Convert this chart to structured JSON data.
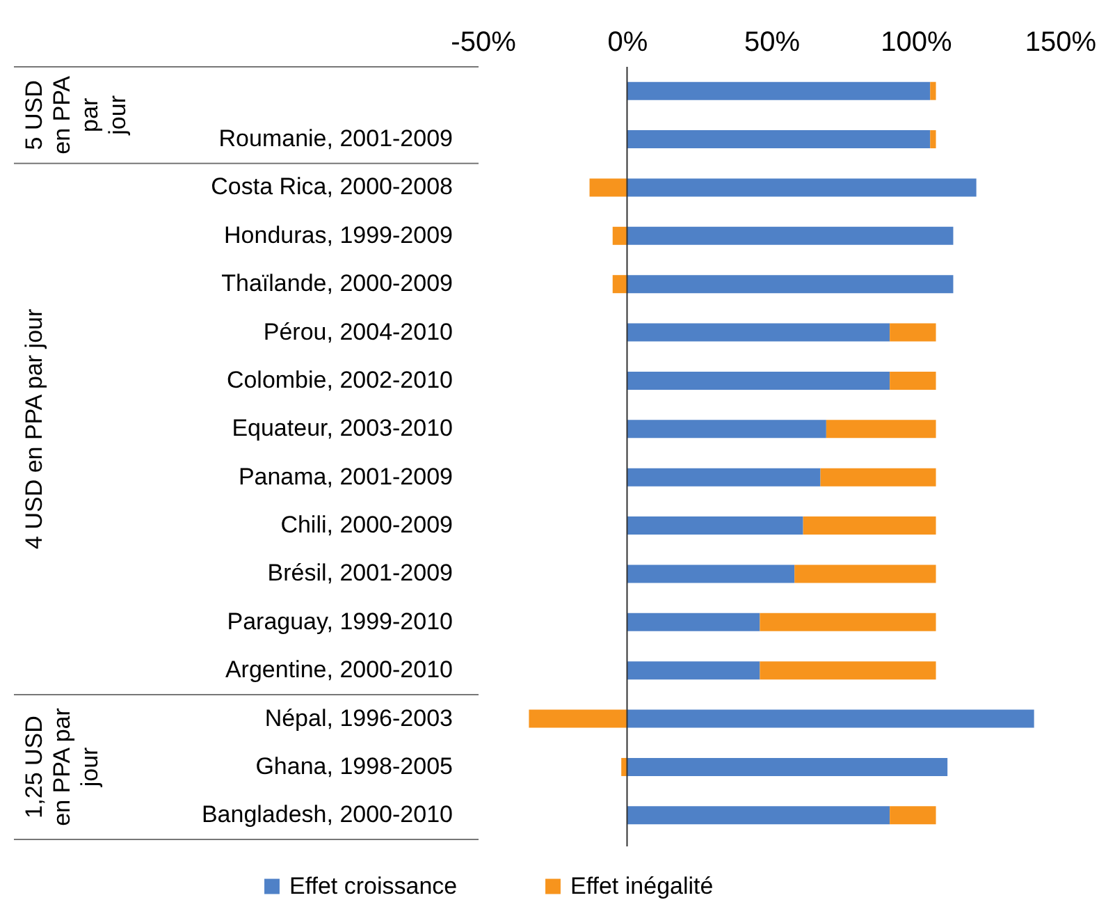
{
  "chart_data": {
    "type": "bar",
    "orientation": "horizontal",
    "stacked": true,
    "categories": [
      null,
      "Roumanie, 2001-2009",
      "Costa Rica, 2000-2008",
      "Honduras, 1999-2009",
      "Thaïlande, 2000-2009",
      "Pérou, 2004-2010",
      "Colombie, 2002-2010",
      "Equateur, 2003-2010",
      "Panama, 2001-2009",
      "Chili, 2000-2009",
      "Brésil, 2001-2009",
      "Paraguay, 1999-2010",
      "Argentine, 2000-2010",
      "Népal, 1996-2003",
      "Ghana, 1998-2005",
      "Bangladesh, 2000-2010"
    ],
    "series": [
      {
        "name": "Effet croissance",
        "color": "#4f81c7",
        "values": [
          105,
          105,
          121,
          113,
          113,
          91,
          91,
          69,
          67,
          61,
          58,
          46,
          46,
          141,
          111,
          91
        ]
      },
      {
        "name": "Effet inégalité",
        "color": "#f7941d",
        "values": [
          2,
          2,
          -13,
          -5,
          -5,
          16,
          16,
          38,
          40,
          46,
          49,
          61,
          61,
          -34,
          -2,
          16
        ]
      }
    ],
    "xlim": [
      -50,
      150
    ],
    "xticks": [
      {
        "value": -50,
        "label": "-50%"
      },
      {
        "value": 0,
        "label": "0%"
      },
      {
        "value": 50,
        "label": "50%"
      },
      {
        "value": 100,
        "label": "100%"
      },
      {
        "value": 150,
        "label": "150%"
      }
    ],
    "annotations": [
      "5 USD en PPA par jour",
      "4 USD en PPA par jour",
      "1,25 USD en PPA par jour"
    ],
    "legend": "bottom"
  }
}
